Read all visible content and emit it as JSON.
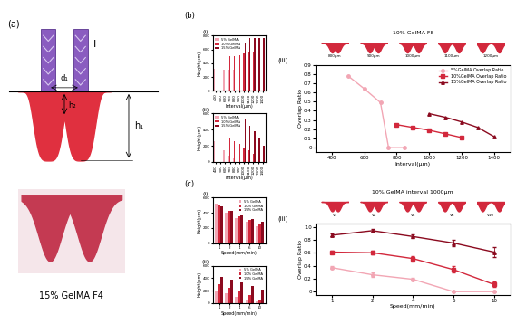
{
  "panel_labels": [
    "(a)",
    "(b)",
    "(c)"
  ],
  "diagram": {
    "texts": {
      "nozzle": "I",
      "spacing": "d₁",
      "depth": "h₁",
      "overlap_depth": "h₂"
    },
    "caption": "15% GelMA F4"
  },
  "chart_data": [
    {
      "label": "(i)",
      "type": "bar",
      "x_label": "Interval(μm)",
      "y_label": "Height(μm)",
      "categories": [
        "400",
        "500",
        "600",
        "700",
        "800",
        "900",
        "1000",
        "1100",
        "1200",
        "1300",
        "1400"
      ],
      "series": [
        {
          "name": "5% GelMA",
          "color": "#f2a6b4",
          "values": [
            320,
            320,
            310,
            310,
            300,
            null,
            null,
            null,
            null,
            null,
            null
          ]
        },
        {
          "name": "10% GelMA",
          "color": "#d2283c",
          "values": [
            null,
            null,
            null,
            500,
            500,
            520,
            540,
            560,
            560,
            null,
            null
          ]
        },
        {
          "name": "15% GelMA",
          "color": "#8b0a1f",
          "values": [
            null,
            null,
            null,
            null,
            null,
            null,
            700,
            760,
            760,
            760,
            760
          ]
        }
      ],
      "ylim": [
        0,
        800
      ],
      "yticks": [
        0,
        200,
        400,
        600,
        800
      ],
      "legend": "upper left"
    },
    {
      "label": "(ii)",
      "type": "bar",
      "x_label": "Interval(μm)",
      "y_label": "Height(μm)",
      "categories": [
        "400",
        "500",
        "600",
        "700",
        "800",
        "900",
        "1000",
        "1100",
        "1200",
        "1300",
        "1400"
      ],
      "series": [
        {
          "name": "5% GelMA",
          "color": "#f2a6b4",
          "values": [
            260,
            200,
            150,
            80,
            40,
            null,
            null,
            null,
            null,
            null,
            null
          ]
        },
        {
          "name": "10% GelMA",
          "color": "#d2283c",
          "values": [
            null,
            null,
            null,
            300,
            260,
            220,
            180,
            140,
            100,
            null,
            null
          ]
        },
        {
          "name": "15% GelMA",
          "color": "#8b0a1f",
          "values": [
            null,
            null,
            null,
            null,
            null,
            null,
            520,
            450,
            380,
            300,
            200
          ]
        }
      ],
      "ylim": [
        0,
        600
      ],
      "yticks": [
        0,
        200,
        400,
        600
      ],
      "legend": "upper left"
    },
    {
      "label": "(iii)",
      "type": "line",
      "title": "10% GelMA F8",
      "x_label": "Interval(μm)",
      "y_label": "Overlap Ratio",
      "inset_labels": [
        "800μm",
        "900μm",
        "1000μm",
        "1100μm",
        "1200μm"
      ],
      "series": [
        {
          "name": "5%GelMA Overlap Ratio",
          "color": "#f2a6b4",
          "marker": "circle",
          "x": [
            500,
            600,
            700,
            750,
            850
          ],
          "values": [
            0.78,
            0.64,
            0.49,
            0,
            0
          ]
        },
        {
          "name": "10%GelMA Overlap Ratio",
          "color": "#d2283c",
          "marker": "square",
          "x": [
            800,
            900,
            1000,
            1100,
            1200
          ],
          "values": [
            0.25,
            0.22,
            0.19,
            0.15,
            0.11
          ]
        },
        {
          "name": "15%GelMA Overlap Ratio",
          "color": "#8b0a1f",
          "marker": "triangle",
          "x": [
            1000,
            1100,
            1200,
            1300,
            1400
          ],
          "values": [
            0.37,
            0.33,
            0.28,
            0.22,
            0.12
          ]
        }
      ],
      "xlim": [
        300,
        1500
      ],
      "xticks": [
        400,
        600,
        800,
        1000,
        1200,
        1400
      ],
      "ylim": [
        -0.05,
        0.9
      ],
      "yticks": [
        0,
        0.1,
        0.2,
        0.3,
        0.4,
        0.5,
        0.6,
        0.7,
        0.8,
        0.9
      ],
      "legend": "upper right"
    },
    {
      "label": "(i)",
      "type": "bar",
      "x_label": "Speed(mm/min)",
      "y_label": "Height(μm)",
      "categories": [
        "1",
        "2",
        "4",
        "6",
        "10"
      ],
      "series": [
        {
          "name": "5% GelMA",
          "color": "#f2a6b4",
          "values": [
            520,
            400,
            330,
            280,
            220
          ]
        },
        {
          "name": "10% GelMA",
          "color": "#d2283c",
          "values": [
            500,
            420,
            350,
            300,
            250
          ]
        },
        {
          "name": "15% GelMA",
          "color": "#8b0a1f",
          "values": [
            480,
            430,
            360,
            320,
            280
          ]
        }
      ],
      "ylim": [
        0,
        600
      ],
      "yticks": [
        0,
        200,
        400,
        600
      ],
      "legend": "upper right"
    },
    {
      "label": "(ii)",
      "type": "bar",
      "x_label": "Speed(mm/min)",
      "y_label": "Height(μm)",
      "categories": [
        "1",
        "2",
        "4",
        "6",
        "10"
      ],
      "series": [
        {
          "name": "5% GelMA",
          "color": "#f2a6b4",
          "values": [
            200,
            150,
            100,
            50,
            20
          ]
        },
        {
          "name": "10% GelMA",
          "color": "#d2283c",
          "values": [
            300,
            250,
            200,
            130,
            60
          ]
        },
        {
          "name": "15% GelMA",
          "color": "#8b0a1f",
          "values": [
            420,
            380,
            330,
            280,
            220
          ]
        }
      ],
      "ylim": [
        0,
        600
      ],
      "yticks": [
        0,
        200,
        400,
        600
      ],
      "legend": "upper right"
    },
    {
      "label": "(iii)",
      "type": "line",
      "title": "10% GelMA interval 1000μm",
      "x_label": "Speed(mm/min)",
      "y_label": "Overlap Ratio",
      "inset_labels": [
        "V1",
        "V2",
        "V4",
        "V6",
        "V10"
      ],
      "categories": [
        "1",
        "2",
        "4",
        "6",
        "10"
      ],
      "series": [
        {
          "name": "5%GelMA Overlap Ratio",
          "color": "#f2a6b4",
          "marker": "circle",
          "values": [
            0.37,
            0.26,
            0.19,
            0,
            0
          ],
          "errors": [
            0.02,
            0.03,
            0.02,
            0,
            0
          ]
        },
        {
          "name": "10%GelMA Overlap Ratio",
          "color": "#d2283c",
          "marker": "square",
          "values": [
            0.61,
            0.6,
            0.51,
            0.34,
            0.11
          ],
          "errors": [
            0.02,
            0.03,
            0.04,
            0.05,
            0.04
          ]
        },
        {
          "name": "15%GelMA Overlap Ratio",
          "color": "#8b0a1f",
          "marker": "triangle",
          "values": [
            0.87,
            0.94,
            0.85,
            0.75,
            0.61
          ],
          "errors": [
            0.02,
            0.02,
            0.03,
            0.05,
            0.08
          ]
        }
      ],
      "ylim": [
        -0.05,
        1.05
      ],
      "yticks": [
        0,
        0.2,
        0.4,
        0.6,
        0.8,
        1.0
      ]
    }
  ]
}
